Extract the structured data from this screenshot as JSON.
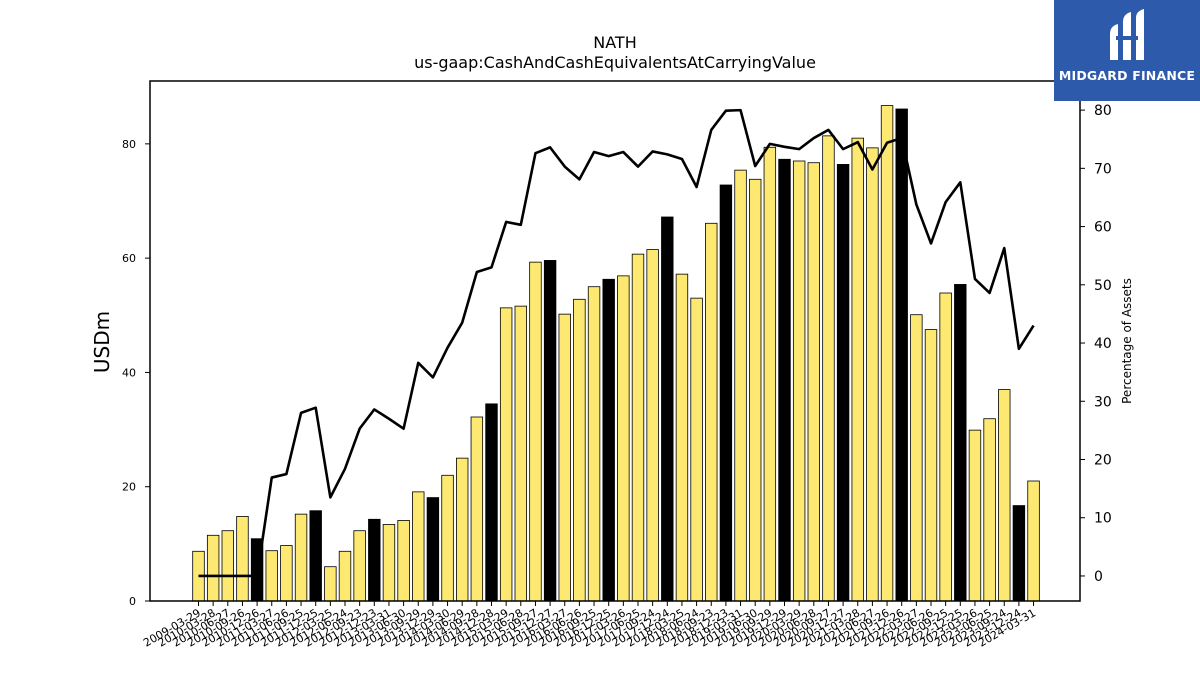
{
  "logo": {
    "text": "MIDGARD FINANCE"
  },
  "colors": {
    "bar_yellow": "#fde972",
    "bar_black": "#000000",
    "line": "#000000",
    "logo_bg": "#2d5aab"
  },
  "chart_data": {
    "type": "bar",
    "title": "NATH",
    "subtitle": "us-gaap:CashAndCashEquivalentsAtCarryingValue",
    "ylabel": "USDm",
    "y2label": "Percentage of Assets",
    "ylim": [
      0,
      91
    ],
    "y2lim": [
      -4.3,
      85
    ],
    "yticks": [
      0,
      20,
      40,
      60,
      80
    ],
    "y2ticks": [
      0,
      10,
      20,
      30,
      40,
      50,
      60,
      70,
      80
    ],
    "x_tick_labels": [
      "2009-03-29",
      "2010-03-28",
      "2010-06-27",
      "2010-09-26",
      "2010-12-26",
      "2011-03-27",
      "2011-06-26",
      "2011-09-25",
      "2011-12-25",
      "2012-03-25",
      "2012-06-24",
      "2012-09-23",
      "2012-12-23",
      "2013-03-31",
      "2013-06-30",
      "2013-09-29",
      "2013-12-29",
      "2014-03-30",
      "2014-06-29",
      "2014-09-28",
      "2014-12-28",
      "2015-03-29",
      "2015-06-28",
      "2015-09-27",
      "2015-12-27",
      "2016-03-27",
      "2016-06-26",
      "2016-09-25",
      "2016-12-25",
      "2017-03-26",
      "2017-06-25",
      "2017-09-24",
      "2017-12-24",
      "2018-03-25",
      "2018-06-24",
      "2018-09-23",
      "2018-12-23",
      "2019-03-31",
      "2019-06-30",
      "2019-09-29",
      "2019-12-29",
      "2020-03-29",
      "2020-06-28",
      "2020-09-27",
      "2020-12-27",
      "2021-03-28",
      "2021-06-27",
      "2021-09-26",
      "2021-12-26",
      "2022-03-27",
      "2022-06-26",
      "2022-09-25",
      "2022-12-25",
      "2023-03-26",
      "2023-06-25",
      "2023-09-24",
      "2023-12-24",
      "2024-03-31"
    ],
    "x_tick_display": [
      "2009-03-29",
      "2010-03-28",
      "2010-06-27",
      "2010-09-26",
      "2010-12-26",
      "2011-03-27",
      "2011-06-26",
      "2011-09-25",
      "2011-12-25",
      "2012-03-25",
      "2012-06-24",
      "2012-09-23",
      "2012-12-23",
      "2013-03-31",
      "2013-06-30",
      "2013-09-29",
      "2013-12-29",
      "2014-03-30",
      "2014-06-29",
      "2014-09-28",
      "2014-12-28",
      "2015-03-29",
      "2015-06-28",
      "2015-09-27",
      "2015-12-27",
      "2016-03-27",
      "2016-06-26",
      "2016-09-25",
      "2016-12-25",
      "2017-03-26",
      "2017-06-25",
      "2017-09-24",
      "2017-12-24",
      "2018-03-25",
      "2018-06-24",
      "2018-09-23",
      "2018-12-23",
      "2019-03-31",
      "2019-06-30",
      "2019-09-29",
      "2019-12-29",
      "2020-03-29",
      "2020-06-28",
      "2020-09-27",
      "2020-12-27",
      "2021-03-28",
      "2021-06-27",
      "2021-09-26",
      "2021-12-26",
      "2022-03-27",
      "2022-06-26",
      "2022-09-25",
      "2022-12-25",
      "2023-03-26",
      "2023-06-25",
      "2023-09-24",
      "2023-12-24",
      "2024-03-31"
    ],
    "series": [
      {
        "kind": "bar",
        "axis": "left",
        "values": [
          8.7,
          11.5,
          12.3,
          14.8,
          10.9,
          8.8,
          9.7,
          15.2,
          15.8,
          6.0,
          8.7,
          12.3,
          14.3,
          13.4,
          14.1,
          19.1,
          18.1,
          22.0,
          25.0,
          32.2,
          34.5,
          51.3,
          51.6,
          59.3,
          59.6,
          50.2,
          52.8,
          55.0,
          56.3,
          56.9,
          60.7,
          61.5,
          67.2,
          57.2,
          53.0,
          66.1,
          72.8,
          75.4,
          73.8,
          79.4,
          77.3,
          77.0,
          76.7,
          81.4,
          76.4,
          81.0,
          79.3,
          86.7,
          86.1,
          50.1,
          47.5,
          53.9,
          55.4,
          29.9,
          31.9,
          37.0,
          16.7,
          21.0
        ],
        "highlight": [
          false,
          false,
          false,
          false,
          true,
          false,
          false,
          false,
          true,
          false,
          false,
          false,
          true,
          false,
          false,
          false,
          true,
          false,
          false,
          false,
          true,
          false,
          false,
          false,
          true,
          false,
          false,
          false,
          true,
          false,
          false,
          false,
          true,
          false,
          false,
          false,
          true,
          false,
          false,
          false,
          true,
          false,
          false,
          false,
          true,
          false,
          false,
          false,
          true,
          false,
          false,
          false,
          true,
          false,
          false,
          false,
          true,
          false
        ]
      },
      {
        "kind": "line",
        "axis": "right",
        "values": [
          0.0,
          0.0,
          0.0,
          0.0,
          0.0,
          16.9,
          17.5,
          28.0,
          28.9,
          13.5,
          18.4,
          25.3,
          28.6,
          27.0,
          25.3,
          36.6,
          34.1,
          39.2,
          43.5,
          52.2,
          53.0,
          60.8,
          60.3,
          72.6,
          73.6,
          70.3,
          68.1,
          72.8,
          72.1,
          72.8,
          70.3,
          72.9,
          72.4,
          71.6,
          66.8,
          76.6,
          79.9,
          80.0,
          70.4,
          74.2,
          73.7,
          73.3,
          75.2,
          76.6,
          73.3,
          74.5,
          69.8,
          74.4,
          75.2,
          63.8,
          57.1,
          64.2,
          67.6,
          51.0,
          48.6,
          56.3,
          39.0,
          43.0
        ]
      }
    ],
    "legend": "none"
  }
}
